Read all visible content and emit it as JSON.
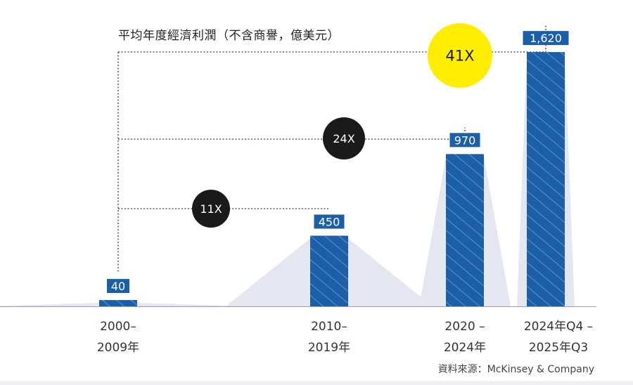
{
  "chart_data": {
    "type": "bar",
    "title": "平均年度經濟利潤（不含商譽，億美元）",
    "categories": [
      [
        "2000–",
        "2009年"
      ],
      [
        "2010–",
        "2019年"
      ],
      [
        "2020 –",
        "2024年"
      ],
      [
        "2024年Q4 –",
        "2025年Q3"
      ]
    ],
    "values": [
      40,
      450,
      970,
      1620
    ],
    "value_labels": [
      "40",
      "450",
      "970",
      "1,620"
    ],
    "ylim": [
      0,
      1700
    ],
    "annotations": [
      {
        "label": "11X",
        "from_category": 0,
        "to_category": 1,
        "color": "#1a1a1a",
        "text_color": "#ffffff"
      },
      {
        "label": "24X",
        "from_category": 0,
        "to_category": 2,
        "color": "#1a1a1a",
        "text_color": "#ffffff"
      },
      {
        "label": "41X",
        "from_category": 0,
        "to_category": 3,
        "color": "#ffee00",
        "text_color": "#1a1a1a"
      }
    ],
    "colors": {
      "bar": "#1b5fa8",
      "hatch": "#6f9fd8",
      "shadow": "#e4e6f1",
      "connector": "#2a3b6b",
      "axis": "#9aa0b4"
    },
    "grid": false
  },
  "source": "資料來源：McKinsey & Company"
}
